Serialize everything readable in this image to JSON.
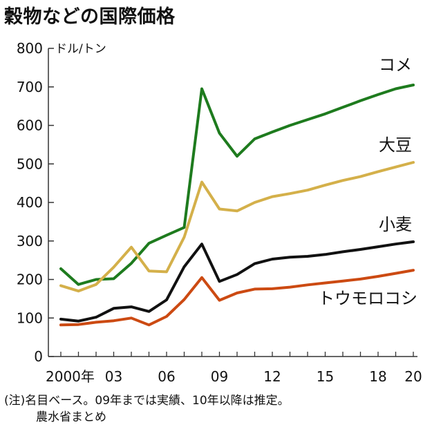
{
  "title": "穀物などの国際価格",
  "note": {
    "line1": "(注)名目ベース。09年までは実績、10年以降は推定。",
    "line2": "農水省まとめ"
  },
  "chart_data": {
    "type": "line",
    "title": "穀物などの国際価格",
    "ylabel": "ドル/トン",
    "xlabel": "",
    "ylim": [
      0,
      800
    ],
    "xlim": [
      2000,
      2020
    ],
    "yticks": [
      0,
      100,
      200,
      300,
      400,
      500,
      600,
      700,
      800
    ],
    "xticks": [
      2000,
      2003,
      2006,
      2009,
      2012,
      2015,
      2018,
      2020
    ],
    "xtick_labels": [
      "2000年",
      "03",
      "06",
      "09",
      "12",
      "15",
      "18",
      "20"
    ],
    "ytick_labels": [
      "0",
      "100",
      "200",
      "300",
      "400",
      "500",
      "600",
      "700",
      "800"
    ],
    "grid": false,
    "x": [
      2000,
      2001,
      2002,
      2003,
      2004,
      2005,
      2006,
      2007,
      2008,
      2009,
      2010,
      2011,
      2012,
      2013,
      2014,
      2015,
      2016,
      2017,
      2018,
      2019,
      2020
    ],
    "series": [
      {
        "name": "コメ",
        "color": "#1e7b1e",
        "values": [
          228,
          187,
          200,
          202,
          242,
          294,
          315,
          335,
          695,
          580,
          520,
          565,
          583,
          600,
          615,
          630,
          647,
          664,
          680,
          695,
          705
        ]
      },
      {
        "name": "大豆",
        "color": "#d4b04a",
        "values": [
          184,
          170,
          187,
          232,
          284,
          222,
          220,
          310,
          453,
          383,
          378,
          400,
          415,
          423,
          432,
          445,
          457,
          467,
          480,
          492,
          504
        ]
      },
      {
        "name": "小麦",
        "color": "#111111",
        "values": [
          97,
          92,
          102,
          125,
          129,
          117,
          147,
          233,
          292,
          195,
          213,
          241,
          253,
          258,
          260,
          265,
          272,
          278,
          285,
          292,
          298
        ]
      },
      {
        "name": "トウモロコシ",
        "color": "#cc4a12",
        "values": [
          82,
          83,
          89,
          93,
          100,
          82,
          104,
          148,
          205,
          146,
          165,
          175,
          176,
          180,
          186,
          191,
          196,
          201,
          208,
          216,
          224
        ]
      }
    ]
  }
}
